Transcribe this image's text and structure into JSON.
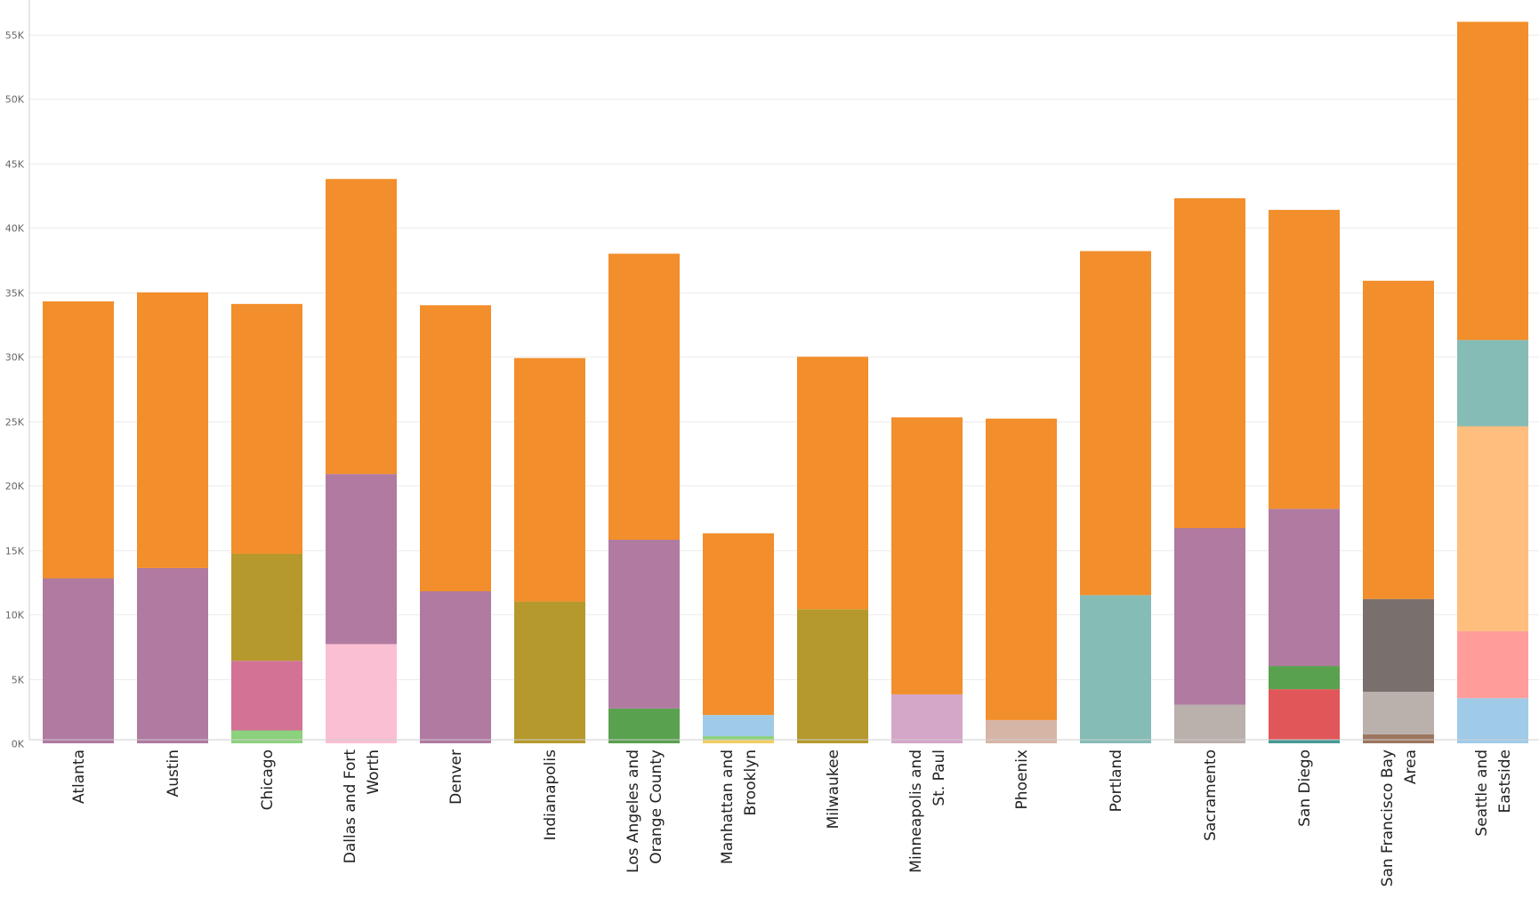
{
  "chart_data": {
    "type": "bar",
    "stacked": true,
    "title": "",
    "xlabel": "",
    "ylabel": "",
    "ylim": [
      0,
      57000
    ],
    "yticks": [
      0,
      5000,
      10000,
      15000,
      20000,
      25000,
      30000,
      35000,
      40000,
      45000,
      50000,
      55000
    ],
    "ytick_labels": [
      "0K",
      "5K",
      "10K",
      "15K",
      "20K",
      "25K",
      "30K",
      "35K",
      "40K",
      "45K",
      "50K",
      "55K"
    ],
    "grid": true,
    "legend": "none",
    "categories": [
      {
        "label_lines": [
          "Atlanta"
        ],
        "total": 34300,
        "segments": [
          {
            "value": 12800,
            "color": "#b07aa1"
          },
          {
            "value": 21500,
            "color": "#f28e2b"
          }
        ]
      },
      {
        "label_lines": [
          "Austin"
        ],
        "total": 35000,
        "segments": [
          {
            "value": 13600,
            "color": "#b07aa1"
          },
          {
            "value": 21400,
            "color": "#f28e2b"
          }
        ]
      },
      {
        "label_lines": [
          "Chicago"
        ],
        "total": 34100,
        "segments": [
          {
            "value": 1000,
            "color": "#8cd17d"
          },
          {
            "value": 5400,
            "color": "#d37295"
          },
          {
            "value": 8300,
            "color": "#b6992d"
          },
          {
            "value": 19400,
            "color": "#f28e2b"
          }
        ]
      },
      {
        "label_lines": [
          "Dallas and Fort",
          "Worth"
        ],
        "total": 43800,
        "segments": [
          {
            "value": 7700,
            "color": "#fabfd2"
          },
          {
            "value": 13200,
            "color": "#b07aa1"
          },
          {
            "value": 22900,
            "color": "#f28e2b"
          }
        ]
      },
      {
        "label_lines": [
          "Denver"
        ],
        "total": 34000,
        "segments": [
          {
            "value": 11800,
            "color": "#b07aa1"
          },
          {
            "value": 22200,
            "color": "#f28e2b"
          }
        ]
      },
      {
        "label_lines": [
          "Indianapolis"
        ],
        "total": 29900,
        "segments": [
          {
            "value": 11000,
            "color": "#b6992d"
          },
          {
            "value": 18900,
            "color": "#f28e2b"
          }
        ]
      },
      {
        "label_lines": [
          "Los Angeles and",
          "Orange County"
        ],
        "total": 38000,
        "segments": [
          {
            "value": 2700,
            "color": "#59a14f"
          },
          {
            "value": 13100,
            "color": "#b07aa1"
          },
          {
            "value": 22200,
            "color": "#f28e2b"
          }
        ]
      },
      {
        "label_lines": [
          "Manhattan and",
          "Brooklyn"
        ],
        "total": 16300,
        "segments": [
          {
            "value": 250,
            "color": "#f1ce63"
          },
          {
            "value": 300,
            "color": "#8cd17d"
          },
          {
            "value": 1650,
            "color": "#a0cbe8"
          },
          {
            "value": 14100,
            "color": "#f28e2b"
          }
        ]
      },
      {
        "label_lines": [
          "Milwaukee"
        ],
        "total": 30000,
        "segments": [
          {
            "value": 10400,
            "color": "#b6992d"
          },
          {
            "value": 19600,
            "color": "#f28e2b"
          }
        ]
      },
      {
        "label_lines": [
          "Minneapolis and",
          "St. Paul"
        ],
        "total": 25300,
        "segments": [
          {
            "value": 3800,
            "color": "#d4a6c8"
          },
          {
            "value": 21500,
            "color": "#f28e2b"
          }
        ]
      },
      {
        "label_lines": [
          "Phoenix"
        ],
        "total": 25200,
        "segments": [
          {
            "value": 1800,
            "color": "#d7b5a6"
          },
          {
            "value": 23400,
            "color": "#f28e2b"
          }
        ]
      },
      {
        "label_lines": [
          "Portland"
        ],
        "total": 38200,
        "segments": [
          {
            "value": 11500,
            "color": "#86bcb6"
          },
          {
            "value": 26700,
            "color": "#f28e2b"
          }
        ]
      },
      {
        "label_lines": [
          "Sacramento"
        ],
        "total": 42300,
        "segments": [
          {
            "value": 3000,
            "color": "#bab0ac"
          },
          {
            "value": 13700,
            "color": "#b07aa1"
          },
          {
            "value": 25600,
            "color": "#f28e2b"
          }
        ]
      },
      {
        "label_lines": [
          "San Diego"
        ],
        "total": 41400,
        "segments": [
          {
            "value": 300,
            "color": "#499894"
          },
          {
            "value": 3900,
            "color": "#e15759"
          },
          {
            "value": 1800,
            "color": "#59a14f"
          },
          {
            "value": 12200,
            "color": "#b07aa1"
          },
          {
            "value": 23200,
            "color": "#f28e2b"
          }
        ]
      },
      {
        "label_lines": [
          "San Francisco Bay",
          "Area"
        ],
        "total": 35900,
        "segments": [
          {
            "value": 700,
            "color": "#9d7660"
          },
          {
            "value": 3300,
            "color": "#bab0ac"
          },
          {
            "value": 7200,
            "color": "#79706e"
          },
          {
            "value": 24700,
            "color": "#f28e2b"
          }
        ]
      },
      {
        "label_lines": [
          "Seattle and",
          "Eastside"
        ],
        "total": 56000,
        "segments": [
          {
            "value": 3500,
            "color": "#a0cbe8"
          },
          {
            "value": 5200,
            "color": "#ff9d9a"
          },
          {
            "value": 15900,
            "color": "#ffbe7d"
          },
          {
            "value": 6700,
            "color": "#86bcb6"
          },
          {
            "value": 24700,
            "color": "#f28e2b"
          }
        ]
      }
    ]
  }
}
